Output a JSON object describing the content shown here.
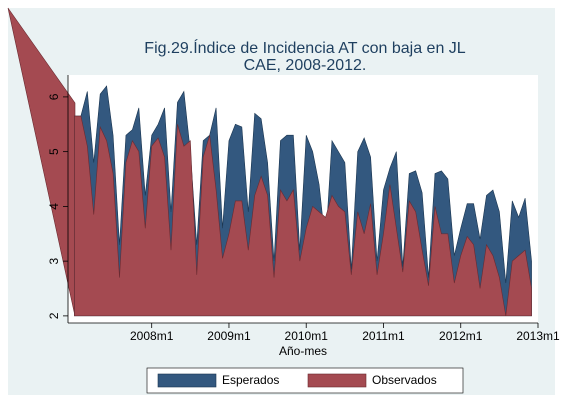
{
  "chart_data": {
    "type": "area",
    "title": [
      "Fig.29.Índice de Incidencia AT con baja en JL",
      "CAE, 2008-2012."
    ],
    "xlabel": "Año-mes",
    "x": [
      564,
      565,
      566,
      567,
      568,
      569,
      570,
      571,
      572,
      573,
      574,
      575,
      576,
      577,
      578,
      579,
      580,
      581,
      582,
      583,
      584,
      585,
      586,
      587,
      588,
      589,
      590,
      591,
      592,
      593,
      594,
      595,
      596,
      597,
      598,
      599,
      600,
      601,
      602,
      603,
      604,
      605,
      606,
      607,
      608,
      609,
      610,
      611,
      612,
      613,
      614,
      615,
      616,
      617,
      618,
      619,
      620,
      621,
      622,
      623,
      624,
      625,
      626,
      627,
      628,
      629,
      630,
      631,
      632,
      633,
      634,
      635
    ],
    "series": [
      {
        "name": "Esperados",
        "color": "#33587f",
        "values": [
          5.65,
          5.65,
          6.1,
          4.8,
          6.05,
          6.2,
          5.3,
          3.3,
          5.3,
          5.4,
          5.8,
          4.2,
          5.3,
          5.5,
          5.8,
          3.9,
          5.9,
          6.1,
          5.0,
          3.3,
          5.2,
          5.3,
          5.8,
          3.6,
          5.2,
          5.5,
          5.45,
          3.9,
          5.7,
          5.6,
          4.8,
          3.0,
          5.2,
          5.3,
          5.3,
          3.2,
          5.3,
          5.0,
          4.4,
          3.3,
          5.2,
          5.0,
          4.8,
          2.85,
          5.0,
          5.25,
          4.9,
          3.0,
          4.3,
          4.7,
          5.0,
          2.9,
          4.6,
          4.65,
          4.25,
          2.7,
          4.6,
          4.65,
          4.5,
          3.1,
          3.6,
          4.05,
          4.05,
          3.4,
          4.2,
          4.3,
          3.9,
          2.6,
          4.1,
          3.8,
          4.15,
          3.0
        ]
      },
      {
        "name": "Observados",
        "color": "#a44a51",
        "values": [
          5.65,
          5.65,
          5.1,
          3.85,
          5.45,
          5.2,
          4.6,
          2.7,
          4.8,
          5.2,
          5.0,
          3.6,
          5.1,
          5.25,
          4.9,
          3.2,
          5.5,
          5.1,
          5.2,
          2.75,
          4.9,
          5.3,
          4.3,
          3.05,
          3.5,
          4.1,
          4.1,
          3.2,
          4.2,
          4.55,
          4.2,
          2.7,
          4.3,
          4.1,
          4.3,
          3.0,
          3.6,
          4.0,
          3.9,
          3.8,
          4.2,
          4.0,
          3.9,
          2.75,
          3.9,
          3.5,
          4.05,
          2.75,
          3.5,
          4.4,
          3.6,
          2.8,
          4.1,
          3.9,
          3.2,
          2.55,
          4.0,
          3.5,
          3.5,
          2.6,
          3.1,
          3.45,
          3.3,
          2.5,
          3.3,
          3.1,
          2.7,
          2.0,
          3.0,
          3.1,
          3.2,
          2.5
        ]
      }
    ],
    "xlim": [
      563,
      636
    ],
    "xticks": [
      {
        "value": 576,
        "label": "2008m1"
      },
      {
        "value": 588,
        "label": "2009m1"
      },
      {
        "value": 600,
        "label": "2010m1"
      },
      {
        "value": 612,
        "label": "2011m1"
      },
      {
        "value": 624,
        "label": "2012m1"
      },
      {
        "value": 636,
        "label": "2013m1"
      }
    ],
    "ylim": [
      1.87,
      6.4
    ],
    "yticks": [
      2,
      3,
      4,
      5,
      6
    ],
    "grid": false,
    "legend": "bottom"
  }
}
